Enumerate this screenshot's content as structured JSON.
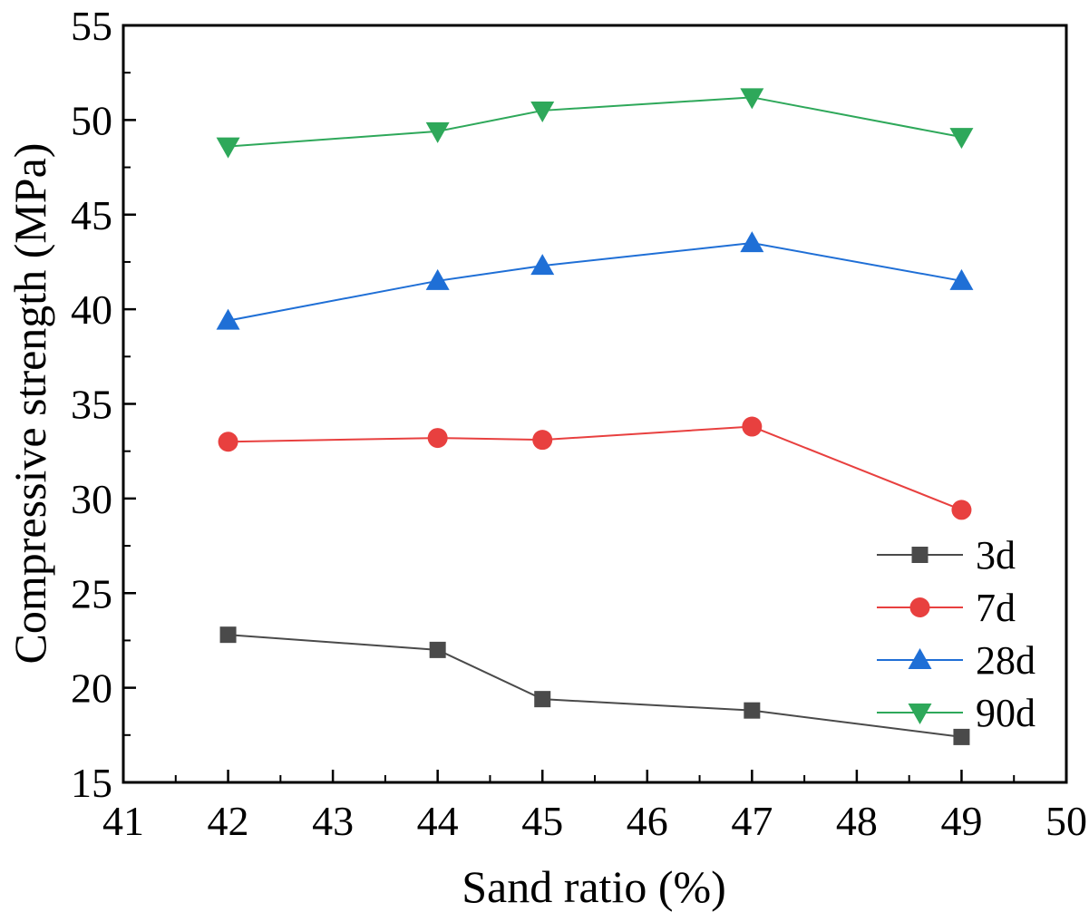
{
  "chart_data": {
    "type": "line",
    "title": "",
    "xlabel": "Sand ratio (%)",
    "ylabel": "Compressive strength (MPa)",
    "xlim": [
      41,
      50
    ],
    "ylim": [
      15,
      55
    ],
    "xticks": [
      "41",
      "42",
      "43",
      "44",
      "45",
      "46",
      "47",
      "48",
      "49",
      "50"
    ],
    "yticks": [
      "15",
      "20",
      "25",
      "30",
      "35",
      "40",
      "45",
      "50",
      "55"
    ],
    "x": [
      42,
      44,
      45,
      47,
      49
    ],
    "legend_position": "right",
    "series": [
      {
        "name": "3d",
        "marker": "square",
        "color": "#4a4a4a",
        "values": [
          22.8,
          22.0,
          19.4,
          18.8,
          17.4
        ]
      },
      {
        "name": "7d",
        "marker": "circle",
        "color": "#e8403f",
        "values": [
          33.0,
          33.2,
          33.1,
          33.8,
          29.4
        ]
      },
      {
        "name": "28d",
        "marker": "triangle-up",
        "color": "#1f6fd6",
        "values": [
          39.4,
          41.5,
          42.3,
          43.5,
          41.5
        ]
      },
      {
        "name": "90d",
        "marker": "triangle-down",
        "color": "#2ea85a",
        "values": [
          48.6,
          49.4,
          50.5,
          51.2,
          49.1
        ]
      }
    ]
  }
}
